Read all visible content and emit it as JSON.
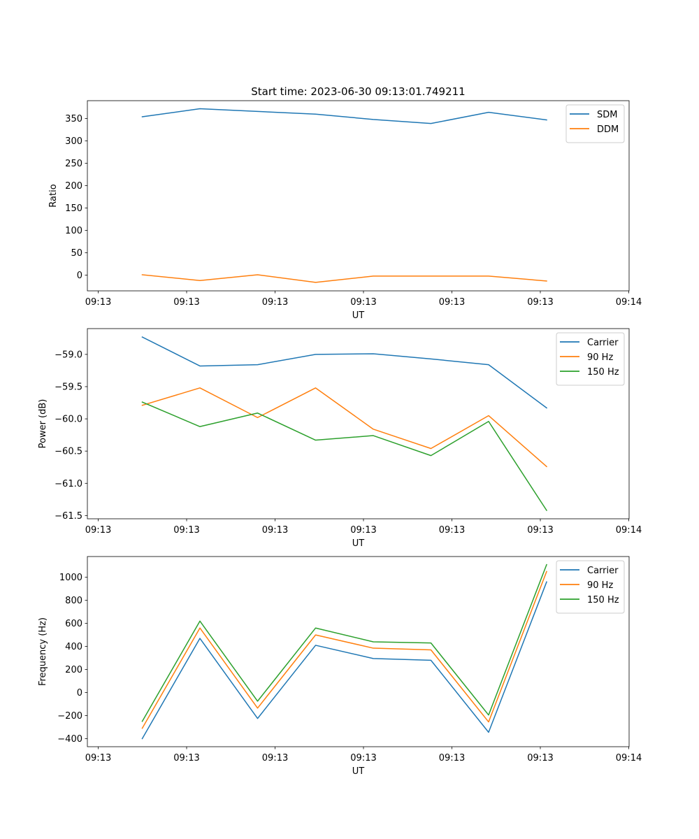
{
  "figure": {
    "title": "Start time: 2023-06-30 09:13:01.749211"
  },
  "colors": {
    "blue": "#1f77b4",
    "orange": "#ff7f0e",
    "green": "#2ca02c"
  },
  "chart_data": [
    {
      "type": "line",
      "title": "Start time: 2023-06-30 09:13:01.749211",
      "xlabel": "UT",
      "ylabel": "Ratio",
      "x_tick_labels": [
        "09:13",
        "09:13",
        "09:13",
        "09:13",
        "09:13",
        "09:13",
        "09:14"
      ],
      "y_ticks": [
        0,
        50,
        100,
        150,
        200,
        250,
        300,
        350
      ],
      "ylim": [
        -35,
        390
      ],
      "legend": "top-right",
      "series": [
        {
          "name": "SDM",
          "color": "#1f77b4",
          "values": [
            354,
            372,
            366,
            360,
            348,
            339,
            364,
            347
          ]
        },
        {
          "name": "DDM",
          "color": "#ff7f0e",
          "values": [
            1,
            -12,
            1,
            -16,
            -2,
            -2,
            -2,
            -13
          ]
        }
      ]
    },
    {
      "type": "line",
      "xlabel": "UT",
      "ylabel": "Power (dB)",
      "x_tick_labels": [
        "09:13",
        "09:13",
        "09:13",
        "09:13",
        "09:13",
        "09:13",
        "09:14"
      ],
      "y_ticks": [
        -61.5,
        -61.0,
        -60.5,
        -60.0,
        -59.5,
        -59.0
      ],
      "y_tick_labels": [
        "−61.5",
        "−61.0",
        "−60.5",
        "−60.0",
        "−59.5",
        "−59.0"
      ],
      "ylim": [
        -61.55,
        -58.6
      ],
      "legend": "top-right",
      "series": [
        {
          "name": "Carrier",
          "color": "#1f77b4",
          "values": [
            -58.73,
            -59.18,
            -59.16,
            -59.0,
            -58.99,
            -59.07,
            -59.16,
            -59.83
          ]
        },
        {
          "name": "90 Hz",
          "color": "#ff7f0e",
          "values": [
            -59.79,
            -59.52,
            -59.98,
            -59.52,
            -60.16,
            -60.46,
            -59.95,
            -60.74
          ]
        },
        {
          "name": "150 Hz",
          "color": "#2ca02c",
          "values": [
            -59.74,
            -60.12,
            -59.91,
            -60.33,
            -60.26,
            -60.57,
            -60.04,
            -61.42
          ]
        }
      ]
    },
    {
      "type": "line",
      "xlabel": "UT",
      "ylabel": "Frequency (Hz)",
      "x_tick_labels": [
        "09:13",
        "09:13",
        "09:13",
        "09:13",
        "09:13",
        "09:13",
        "09:14"
      ],
      "y_ticks": [
        -400,
        -200,
        0,
        200,
        400,
        600,
        800,
        1000
      ],
      "y_tick_labels": [
        "−400",
        "−200",
        "0",
        "200",
        "400",
        "600",
        "800",
        "1000"
      ],
      "ylim": [
        -470,
        1180
      ],
      "legend": "top-right",
      "series": [
        {
          "name": "Carrier",
          "color": "#1f77b4",
          "values": [
            -400,
            470,
            -225,
            410,
            295,
            280,
            -345,
            960
          ]
        },
        {
          "name": "90 Hz",
          "color": "#ff7f0e",
          "values": [
            -310,
            560,
            -135,
            500,
            385,
            370,
            -255,
            1050
          ]
        },
        {
          "name": "150 Hz",
          "color": "#2ca02c",
          "values": [
            -250,
            620,
            -75,
            560,
            440,
            430,
            -195,
            1110
          ]
        }
      ]
    }
  ]
}
